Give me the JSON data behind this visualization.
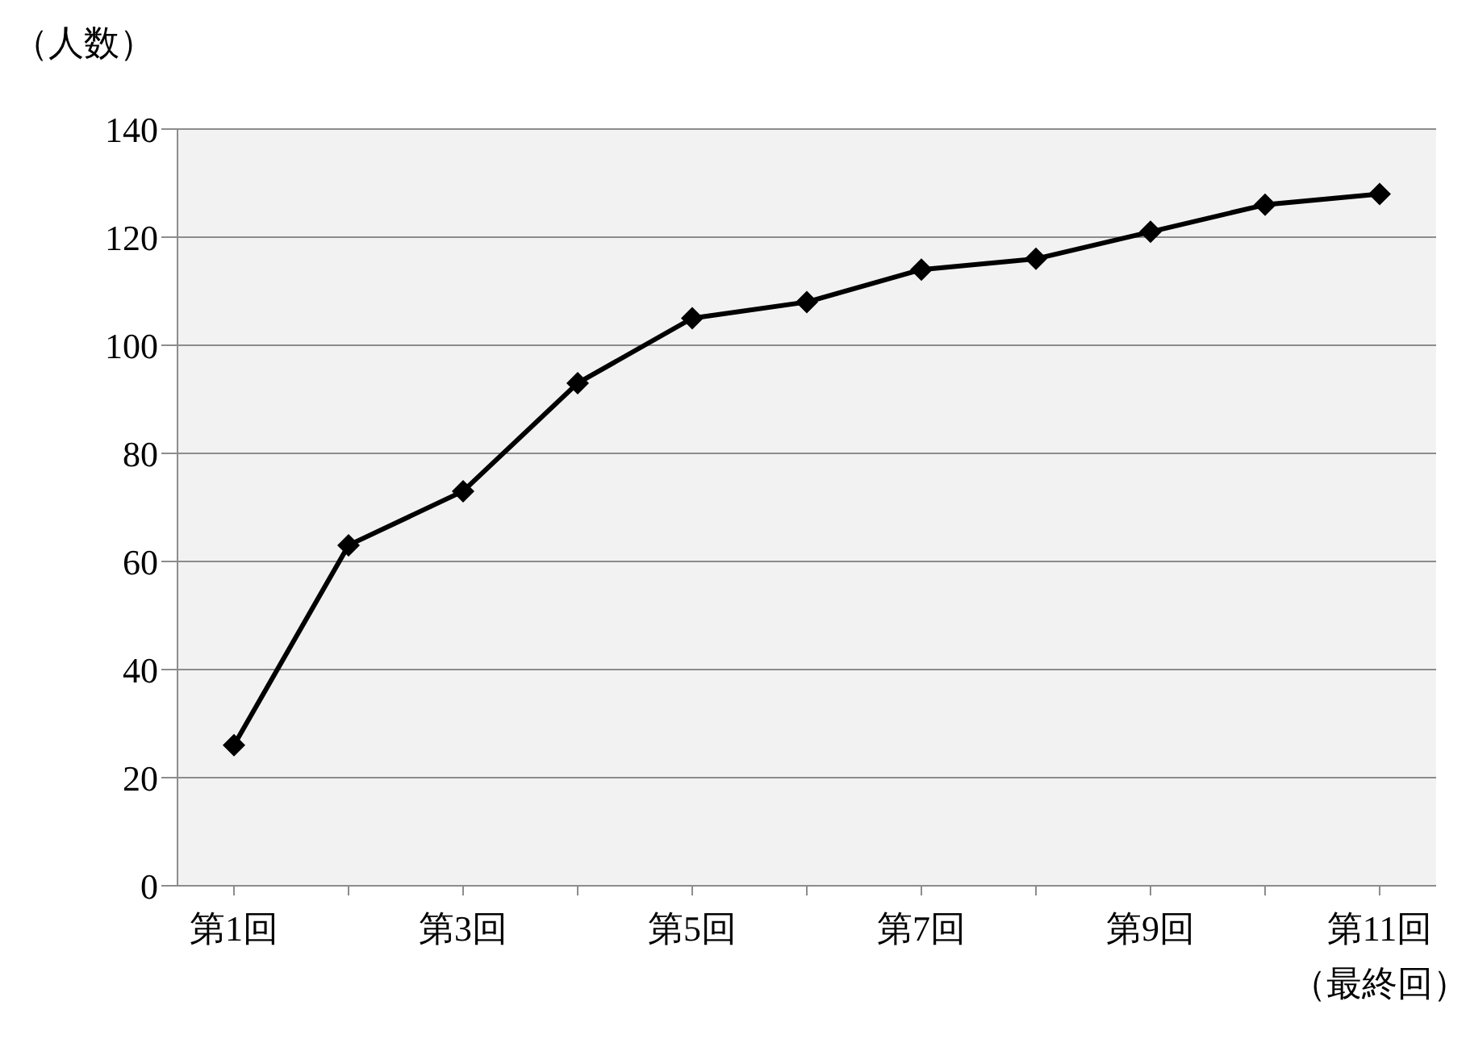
{
  "chart_data": {
    "type": "line",
    "ylabel": "（人数）",
    "categories": [
      "第1回",
      null,
      "第3回",
      null,
      "第5回",
      null,
      "第7回",
      null,
      "第9回",
      null,
      "第11回（最終回）"
    ],
    "series": [
      {
        "color": "#000000",
        "values": [
          26,
          63,
          73,
          93,
          105,
          108,
          114,
          116,
          121,
          126,
          128
        ]
      }
    ],
    "ylim": [
      0,
      140
    ],
    "yticks": [
      0,
      20,
      40,
      60,
      80,
      100,
      120,
      140
    ],
    "grid": "y",
    "marker": "diamond",
    "line_style": "solid",
    "legend": false
  }
}
